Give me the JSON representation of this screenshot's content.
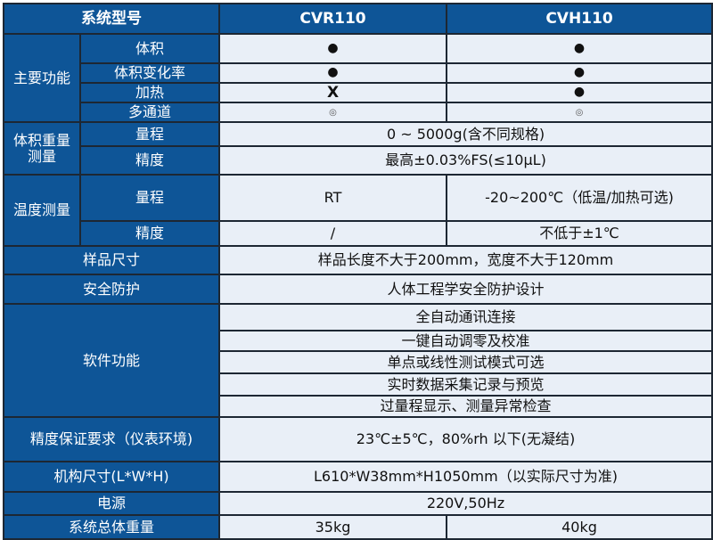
{
  "header": {
    "label": "系统型号",
    "models": [
      "CVR110",
      "CVH110"
    ]
  },
  "main_functions": {
    "group": "主要功能",
    "rows": [
      {
        "label": "体积",
        "cvr": "●",
        "cvh": "●"
      },
      {
        "label": "体积变化率",
        "cvr": "●",
        "cvh": "●"
      },
      {
        "label": "加热",
        "cvr": "X",
        "cvh": "●"
      },
      {
        "label": "多通道",
        "cvr": "◎",
        "cvh": "◎"
      }
    ]
  },
  "volume_weight": {
    "group": "体积重量测量",
    "range_label": "量程",
    "range": "0 ~ 5000g(含不同规格)",
    "accuracy_label": "精度",
    "accuracy": "最高±0.03%FS(≤10μL)"
  },
  "temperature": {
    "group": "温度测量",
    "range_label": "量程",
    "range_cvr": "RT",
    "range_cvh": "-20~200℃（低温/加热可选)",
    "accuracy_label": "精度",
    "accuracy_cvr": "/",
    "accuracy_cvh": "不低于±1℃"
  },
  "sample_size": {
    "label": "样品尺寸",
    "value": "样品长度不大于200mm，宽度不大于120mm"
  },
  "safety": {
    "label": "安全防护",
    "value": "人体工程学安全防护设计"
  },
  "software": {
    "label": "软件功能",
    "items": [
      "全自动通讯连接",
      "一键自动调零及校准",
      "单点或线性测试模式可选",
      "实时数据采集记录与预览",
      "过量程显示、测量异常检查"
    ]
  },
  "environment": {
    "label": "精度保证要求（仪表环境)",
    "value": "23℃±5℃，80%rh 以下(无凝结)"
  },
  "dimensions": {
    "label": "机构尺寸(L*W*H)",
    "value": "L610*W38mm*H1050mm（以实际尺寸为准)"
  },
  "power": {
    "label": "电源",
    "value": "220V,50Hz"
  },
  "weight": {
    "label": "系统总体重量",
    "cvr": "35kg",
    "cvh": "40kg"
  },
  "colors": {
    "header_bg": "#0e5597",
    "cell_bg": "#e9eff7",
    "border": "#1d2733"
  }
}
